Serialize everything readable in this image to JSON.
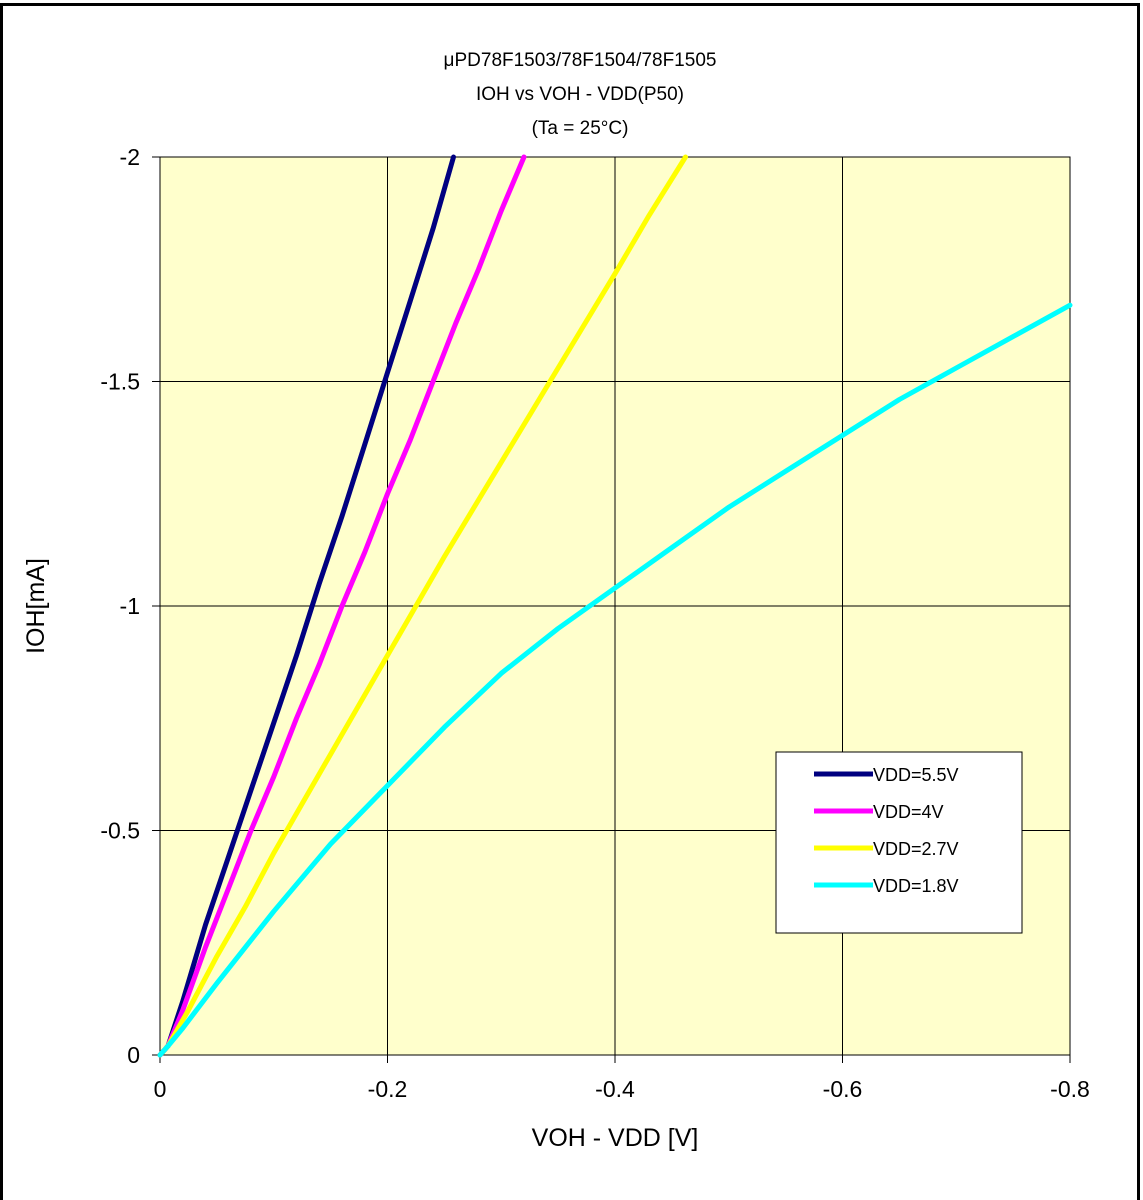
{
  "chart_data": {
    "type": "line",
    "title_lines": [
      "μPD78F1503/78F1504/78F1505",
      "IOH vs VOH  - VDD(P50)",
      "(Ta =  25°C)"
    ],
    "xlabel": "VOH - VDD [V]",
    "ylabel": "IOH[mA]",
    "xlim": [
      0,
      -0.8
    ],
    "ylim": [
      0,
      -2
    ],
    "x_ticks": [
      0,
      -0.2,
      -0.4,
      -0.6,
      -0.8
    ],
    "x_tick_labels": [
      "0",
      "-0.2",
      "-0.4",
      "-0.6",
      "-0.8"
    ],
    "y_ticks": [
      0,
      -0.5,
      -1,
      -1.5,
      -2
    ],
    "y_tick_labels": [
      "0",
      "-0.5",
      "-1",
      "-1.5",
      "-2"
    ],
    "grid": true,
    "plot_background": "#FFFFCC",
    "legend_position": "lower-right",
    "series": [
      {
        "name": "VDD=5.5V",
        "color": "#000080",
        "points": [
          [
            0,
            0
          ],
          [
            -0.007,
            -0.02
          ],
          [
            -0.02,
            -0.12
          ],
          [
            -0.04,
            -0.29
          ],
          [
            -0.06,
            -0.44
          ],
          [
            -0.08,
            -0.59
          ],
          [
            -0.1,
            -0.74
          ],
          [
            -0.12,
            -0.89
          ],
          [
            -0.14,
            -1.05
          ],
          [
            -0.16,
            -1.2
          ],
          [
            -0.18,
            -1.36
          ],
          [
            -0.2,
            -1.52
          ],
          [
            -0.22,
            -1.68
          ],
          [
            -0.24,
            -1.84
          ],
          [
            -0.258,
            -2.0
          ]
        ]
      },
      {
        "name": "VDD=4V",
        "color": "#FF00FF",
        "points": [
          [
            0,
            0
          ],
          [
            -0.007,
            -0.02
          ],
          [
            -0.02,
            -0.1
          ],
          [
            -0.04,
            -0.24
          ],
          [
            -0.06,
            -0.37
          ],
          [
            -0.08,
            -0.5
          ],
          [
            -0.1,
            -0.62
          ],
          [
            -0.12,
            -0.75
          ],
          [
            -0.14,
            -0.87
          ],
          [
            -0.16,
            -1.0
          ],
          [
            -0.18,
            -1.12
          ],
          [
            -0.2,
            -1.25
          ],
          [
            -0.22,
            -1.37
          ],
          [
            -0.24,
            -1.5
          ],
          [
            -0.26,
            -1.63
          ],
          [
            -0.28,
            -1.75
          ],
          [
            -0.3,
            -1.88
          ],
          [
            -0.32,
            -2.0
          ]
        ]
      },
      {
        "name": "VDD=2.7V",
        "color": "#FFFF00",
        "points": [
          [
            0,
            0
          ],
          [
            -0.007,
            -0.02
          ],
          [
            -0.025,
            -0.1
          ],
          [
            -0.05,
            -0.22
          ],
          [
            -0.075,
            -0.33
          ],
          [
            -0.1,
            -0.45
          ],
          [
            -0.15,
            -0.67
          ],
          [
            -0.2,
            -0.89
          ],
          [
            -0.25,
            -1.11
          ],
          [
            -0.3,
            -1.32
          ],
          [
            -0.35,
            -1.53
          ],
          [
            -0.4,
            -1.74
          ],
          [
            -0.43,
            -1.87
          ],
          [
            -0.462,
            -2.0
          ]
        ]
      },
      {
        "name": "VDD=1.8V",
        "color": "#00FFFF",
        "points": [
          [
            0,
            0
          ],
          [
            -0.007,
            -0.02
          ],
          [
            -0.02,
            -0.06
          ],
          [
            -0.05,
            -0.16
          ],
          [
            -0.1,
            -0.32
          ],
          [
            -0.15,
            -0.47
          ],
          [
            -0.2,
            -0.6
          ],
          [
            -0.25,
            -0.73
          ],
          [
            -0.3,
            -0.85
          ],
          [
            -0.35,
            -0.95
          ],
          [
            -0.4,
            -1.04
          ],
          [
            -0.45,
            -1.13
          ],
          [
            -0.5,
            -1.22
          ],
          [
            -0.55,
            -1.3
          ],
          [
            -0.6,
            -1.38
          ],
          [
            -0.65,
            -1.46
          ],
          [
            -0.7,
            -1.53
          ],
          [
            -0.75,
            -1.6
          ],
          [
            -0.8,
            -1.67
          ]
        ]
      }
    ]
  }
}
